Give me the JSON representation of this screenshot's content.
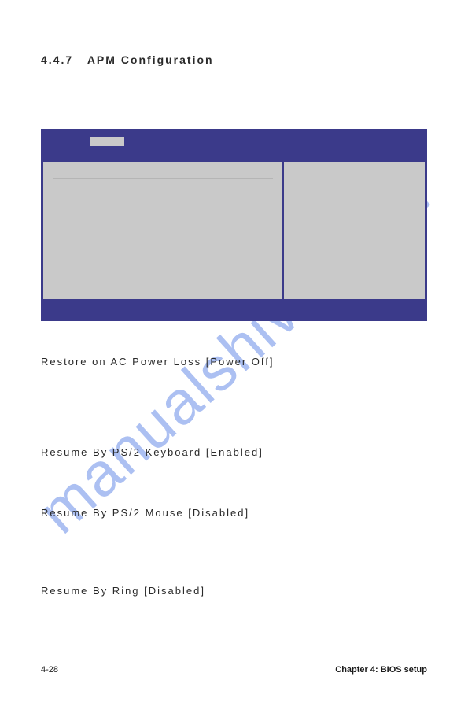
{
  "section": {
    "number": "4.4.7",
    "title": "APM Configuration"
  },
  "bios_panel": {
    "colors": {
      "frame": "#3b3a8a",
      "panel": "#c9c9c9"
    }
  },
  "settings": [
    {
      "label": "Restore on AC Power Loss",
      "value": "[Power Off]"
    },
    {
      "label": "Resume By PS/2 Keyboard",
      "value": "[Enabled]"
    },
    {
      "label": "Resume By PS/2 Mouse",
      "value": "[Disabled]"
    },
    {
      "label": "Resume By Ring",
      "value": "[Disabled]"
    }
  ],
  "footer": {
    "page": "4-28",
    "chapter": "Chapter 4: BIOS setup"
  },
  "watermark": "manualshive.com"
}
